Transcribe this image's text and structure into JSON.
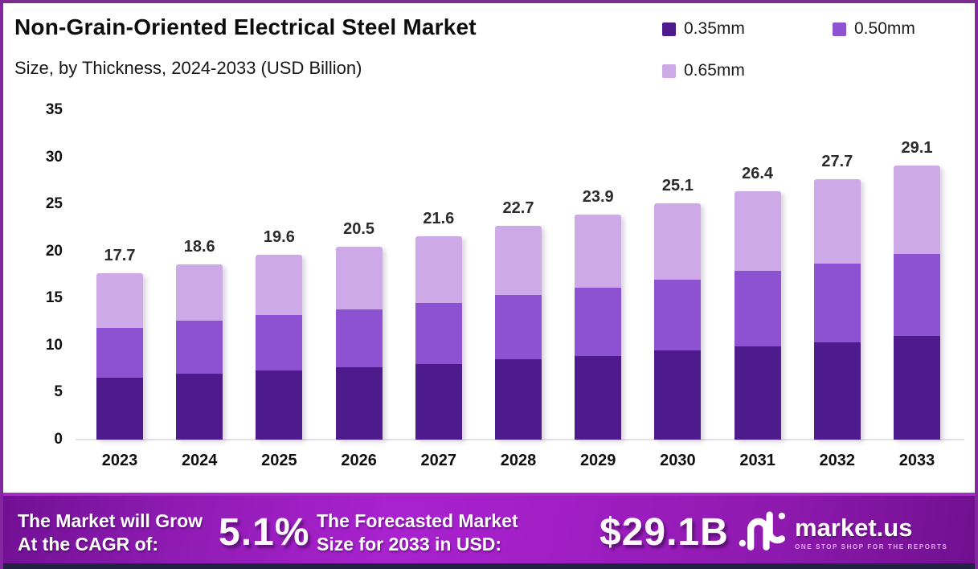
{
  "header": {
    "title": "Non-Grain-Oriented Electrical Steel Market",
    "subtitle": "Size, by Thickness, 2024-2033 (USD Billion)"
  },
  "legend": {
    "items": [
      {
        "label": "0.35mm",
        "color": "#4e1b8c"
      },
      {
        "label": "0.50mm",
        "color": "#8c52d2"
      },
      {
        "label": "0.65mm",
        "color": "#cda9e8"
      }
    ]
  },
  "chart_data": {
    "type": "bar",
    "stacked": true,
    "title": "Non-Grain-Oriented Electrical Steel Market Size, by Thickness, 2024-2033 (USD Billion)",
    "categories": [
      "2023",
      "2024",
      "2025",
      "2026",
      "2027",
      "2028",
      "2029",
      "2030",
      "2031",
      "2032",
      "2033"
    ],
    "series": [
      {
        "name": "0.35mm",
        "color": "#4e1b8c",
        "values": [
          6.6,
          7.0,
          7.3,
          7.7,
          8.0,
          8.5,
          8.9,
          9.5,
          9.9,
          10.3,
          11.0
        ]
      },
      {
        "name": "0.50mm",
        "color": "#8c52d2",
        "values": [
          5.3,
          5.6,
          5.9,
          6.1,
          6.5,
          6.9,
          7.2,
          7.5,
          8.0,
          8.4,
          8.7
        ]
      },
      {
        "name": "0.65mm",
        "color": "#cda9e8",
        "values": [
          5.8,
          6.0,
          6.4,
          6.7,
          7.1,
          7.3,
          7.8,
          8.1,
          8.5,
          9.0,
          9.4
        ]
      }
    ],
    "totals": [
      17.7,
      18.6,
      19.6,
      20.5,
      21.6,
      22.7,
      23.9,
      25.1,
      26.4,
      27.7,
      29.1
    ],
    "xlabel": "",
    "ylabel": "",
    "yticks": [
      0,
      5,
      10,
      15,
      20,
      25,
      30,
      35
    ],
    "ylim": [
      0,
      35
    ],
    "grid": false,
    "legend_position": "top-right"
  },
  "footer": {
    "cagr_label_line1": "The Market will Grow",
    "cagr_label_line2": "At the CAGR of:",
    "cagr_value": "5.1%",
    "forecast_label_line1": "The Forecasted Market",
    "forecast_label_line2": "Size for 2033 in USD:",
    "forecast_value": "$29.1B",
    "brand": {
      "name": "market.us",
      "tagline": "ONE STOP SHOP FOR THE REPORTS"
    }
  }
}
